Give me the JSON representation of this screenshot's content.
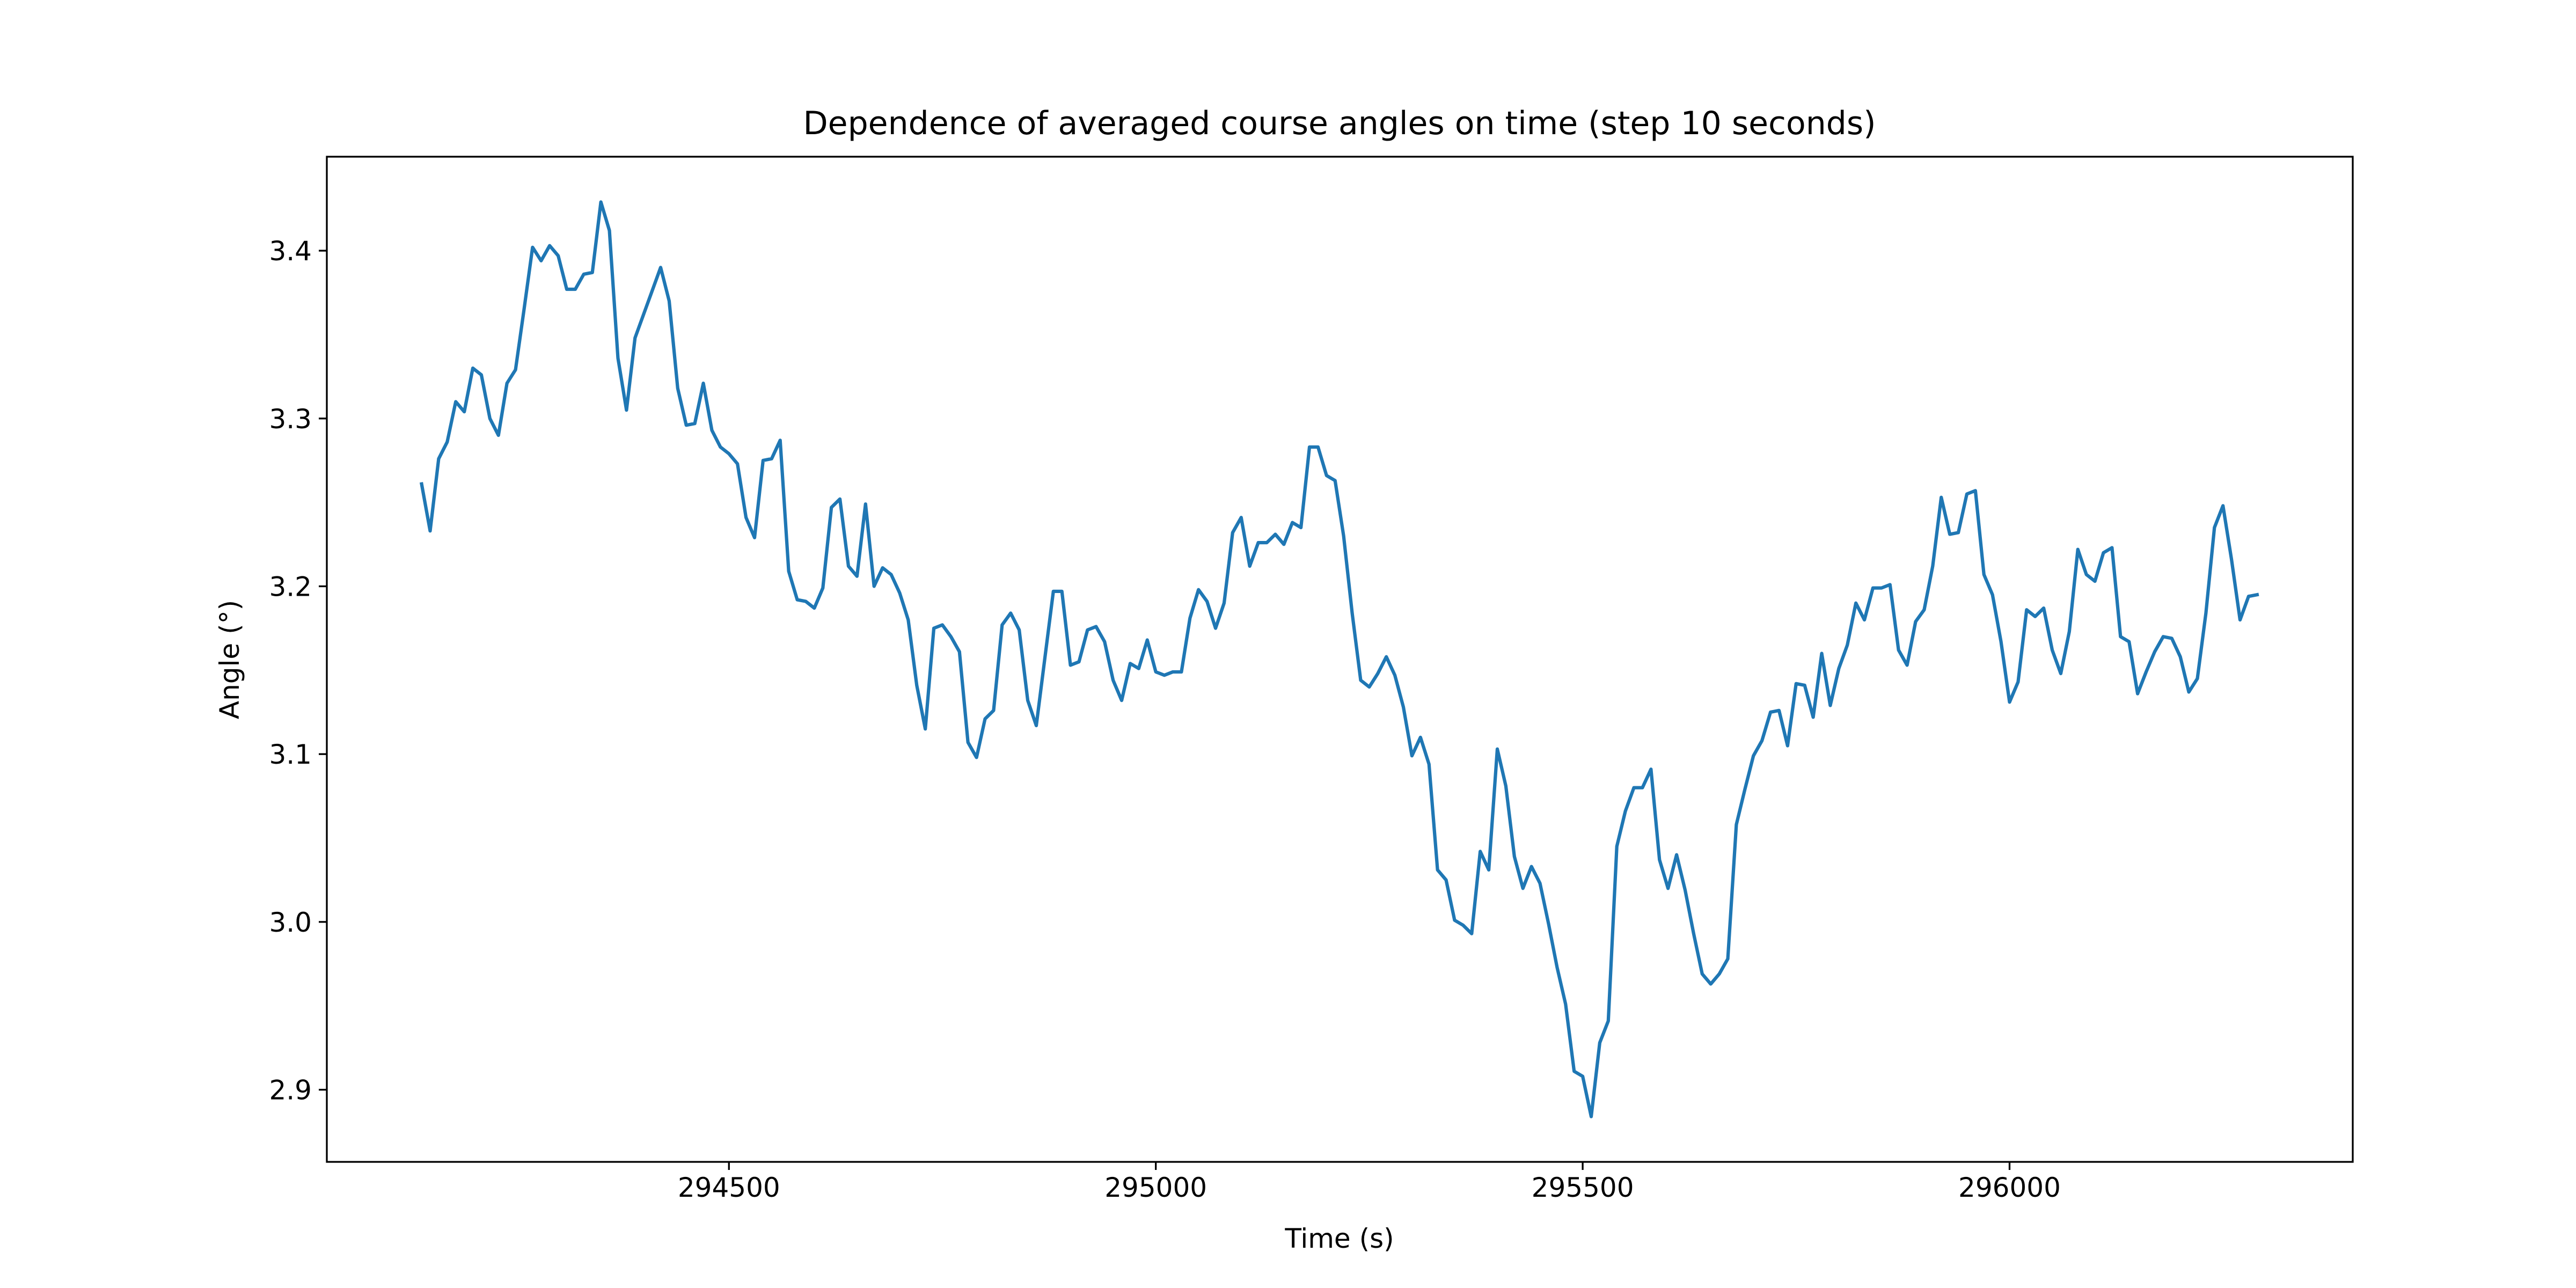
{
  "chart_data": {
    "type": "line",
    "title": "Dependence of averaged course angles on time (step 10 seconds)",
    "xlabel": "Time (s)",
    "ylabel": "Angle (°)",
    "color": "#1f77b4",
    "xlim": [
      294029,
      296402
    ],
    "ylim": [
      2.857,
      3.456
    ],
    "xticks": [
      294500,
      295000,
      295500,
      296000
    ],
    "yticks": [
      2.9,
      {
        "value": 3,
        "label": "3.0"
      },
      3.1,
      3.2,
      3.3,
      3.4
    ],
    "x": [
      294140,
      294150,
      294160,
      294170,
      294180,
      294190,
      294200,
      294210,
      294220,
      294230,
      294240,
      294250,
      294260,
      294270,
      294280,
      294290,
      294300,
      294310,
      294320,
      294330,
      294340,
      294350,
      294360,
      294370,
      294380,
      294390,
      294400,
      294410,
      294420,
      294430,
      294440,
      294450,
      294460,
      294470,
      294480,
      294490,
      294500,
      294510,
      294520,
      294530,
      294540,
      294550,
      294560,
      294570,
      294580,
      294590,
      294600,
      294610,
      294620,
      294630,
      294640,
      294650,
      294660,
      294670,
      294680,
      294690,
      294700,
      294710,
      294720,
      294730,
      294740,
      294750,
      294760,
      294770,
      294780,
      294790,
      294800,
      294810,
      294820,
      294830,
      294840,
      294850,
      294860,
      294870,
      294880,
      294890,
      294900,
      294910,
      294920,
      294930,
      294940,
      294950,
      294960,
      294970,
      294980,
      294990,
      295000,
      295010,
      295020,
      295030,
      295040,
      295050,
      295060,
      295070,
      295080,
      295090,
      295100,
      295110,
      295120,
      295130,
      295140,
      295150,
      295160,
      295170,
      295180,
      295190,
      295200,
      295210,
      295220,
      295230,
      295240,
      295250,
      295260,
      295270,
      295280,
      295290,
      295300,
      295310,
      295320,
      295330,
      295340,
      295350,
      295360,
      295370,
      295380,
      295390,
      295400,
      295410,
      295420,
      295430,
      295440,
      295450,
      295460,
      295470,
      295480,
      295490,
      295500,
      295510,
      295520,
      295530,
      295540,
      295550,
      295560,
      295570,
      295580,
      295590,
      295600,
      295610,
      295620,
      295630,
      295640,
      295650,
      295660,
      295670,
      295680,
      295690,
      295700,
      295710,
      295720,
      295730,
      295740,
      295750,
      295760,
      295770,
      295780,
      295790,
      295800,
      295810,
      295820,
      295830,
      295840,
      295850,
      295860,
      295870,
      295880,
      295890,
      295900,
      295910,
      295920,
      295930,
      295940,
      295950,
      295960,
      295970,
      295980,
      295990,
      296000,
      296010,
      296020,
      296030,
      296040,
      296050,
      296060,
      296070,
      296080,
      296090,
      296100,
      296110,
      296120,
      296130,
      296140,
      296150,
      296160,
      296170,
      296180,
      296190,
      296200,
      296210,
      296220,
      296230,
      296240,
      296250,
      296260,
      296270,
      296280,
      296290
    ],
    "values": [
      3.261,
      3.233,
      3.276,
      3.286,
      3.31,
      3.304,
      3.33,
      3.326,
      3.3,
      3.29,
      3.321,
      3.329,
      3.365,
      3.402,
      3.394,
      3.403,
      3.397,
      3.377,
      3.377,
      3.386,
      3.387,
      3.429,
      3.412,
      3.336,
      3.305,
      3.348,
      3.362,
      3.376,
      3.39,
      3.37,
      3.318,
      3.296,
      3.297,
      3.321,
      3.293,
      3.283,
      3.279,
      3.273,
      3.241,
      3.229,
      3.275,
      3.276,
      3.287,
      3.209,
      3.192,
      3.191,
      3.187,
      3.199,
      3.247,
      3.252,
      3.212,
      3.206,
      3.249,
      3.2,
      3.211,
      3.207,
      3.196,
      3.18,
      3.141,
      3.115,
      3.175,
      3.177,
      3.17,
      3.161,
      3.107,
      3.098,
      3.121,
      3.126,
      3.177,
      3.184,
      3.174,
      3.132,
      3.117,
      3.157,
      3.197,
      3.197,
      3.153,
      3.155,
      3.174,
      3.176,
      3.167,
      3.144,
      3.132,
      3.154,
      3.151,
      3.168,
      3.149,
      3.147,
      3.149,
      3.149,
      3.181,
      3.198,
      3.191,
      3.175,
      3.19,
      3.232,
      3.241,
      3.212,
      3.226,
      3.226,
      3.231,
      3.225,
      3.238,
      3.235,
      3.283,
      3.283,
      3.266,
      3.263,
      3.23,
      3.184,
      3.144,
      3.14,
      3.148,
      3.158,
      3.147,
      3.128,
      3.099,
      3.11,
      3.094,
      3.031,
      3.025,
      3.001,
      2.998,
      2.993,
      3.042,
      3.031,
      3.103,
      3.081,
      3.039,
      3.02,
      3.033,
      3.023,
      2.999,
      2.973,
      2.951,
      2.911,
      2.908,
      2.884,
      2.928,
      2.941,
      3.045,
      3.066,
      3.08,
      3.08,
      3.091,
      3.037,
      3.02,
      3.04,
      3.019,
      2.993,
      2.969,
      2.963,
      2.969,
      2.978,
      3.058,
      3.079,
      3.099,
      3.108,
      3.125,
      3.126,
      3.105,
      3.142,
      3.141,
      3.122,
      3.16,
      3.129,
      3.151,
      3.165,
      3.19,
      3.18,
      3.199,
      3.199,
      3.201,
      3.162,
      3.153,
      3.179,
      3.186,
      3.212,
      3.253,
      3.231,
      3.232,
      3.255,
      3.257,
      3.207,
      3.195,
      3.167,
      3.131,
      3.143,
      3.186,
      3.182,
      3.187,
      3.162,
      3.148,
      3.173,
      3.222,
      3.207,
      3.203,
      3.22,
      3.223,
      3.17,
      3.167,
      3.136,
      3.149,
      3.161,
      3.17,
      3.169,
      3.158,
      3.137,
      3.145,
      3.184,
      3.235,
      3.248,
      3.216,
      3.18,
      3.194,
      3.195
    ]
  }
}
